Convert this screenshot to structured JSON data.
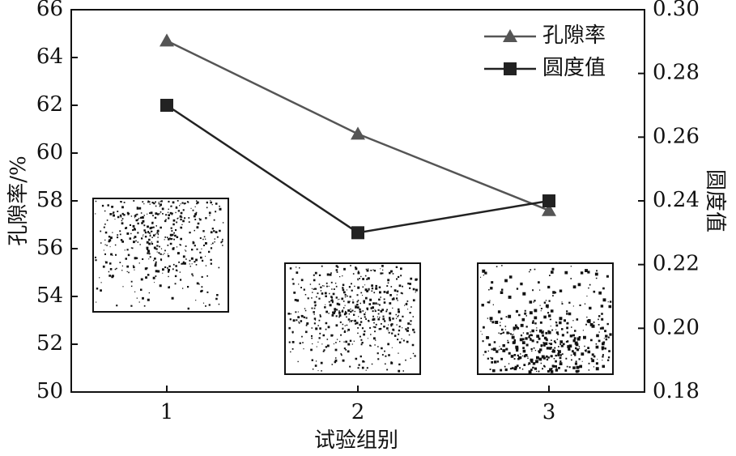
{
  "chart_data": {
    "type": "line",
    "x_label": "试验组别",
    "y_label": "孔隙率/%",
    "y2_label": "圆度值",
    "categories": [
      "1",
      "2",
      "3"
    ],
    "series": [
      {
        "name": "孔隙率",
        "color": "#555555",
        "marker": "triangle",
        "values": [
          64.7,
          60.8,
          57.6
        ]
      },
      {
        "name": "圆度值",
        "color": "#222222",
        "marker": "square",
        "axis": "y2",
        "values": [
          0.27,
          0.23,
          0.24
        ]
      }
    ],
    "ylim": [
      50,
      66
    ],
    "yticks": [
      50,
      52,
      54,
      56,
      58,
      60,
      62,
      64,
      66
    ],
    "y2lim": [
      0.18,
      0.3
    ],
    "y2ticks": [
      0.18,
      {
        "value": 0.2,
        "label": "0.20"
      },
      0.22,
      0.24,
      0.26,
      0.28,
      {
        "value": 0.3,
        "label": "0.30"
      }
    ],
    "legend": "upper right"
  }
}
